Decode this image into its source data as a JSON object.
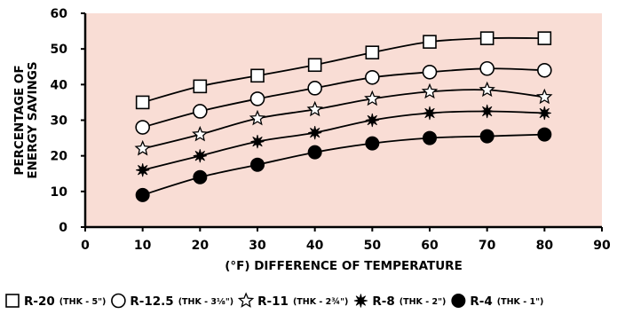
{
  "chart_data": {
    "type": "line",
    "xlabel": "(°F) DIFFERENCE OF TEMPERATURE",
    "ylabel": [
      "PERCENTAGE OF",
      "ENERGY SAVINGS"
    ],
    "xlim": [
      0,
      90
    ],
    "ylim": [
      0,
      60
    ],
    "xticks": [
      "0",
      "10",
      "20",
      "30",
      "40",
      "50",
      "60",
      "70",
      "80",
      "90"
    ],
    "yticks": [
      "0",
      "10",
      "20",
      "30",
      "40",
      "50",
      "60"
    ],
    "grid": false,
    "legend_position": "bottom",
    "colors": {
      "plot_background": "#f9ddd5",
      "line": "#000000"
    },
    "x": [
      10,
      20,
      30,
      40,
      50,
      60,
      70,
      80
    ],
    "series": [
      {
        "name": "R-20",
        "note": "(THK - 5\")",
        "marker": "square",
        "values": [
          35,
          39.5,
          42.5,
          45.5,
          49,
          52,
          53,
          53
        ]
      },
      {
        "name": "R-12.5",
        "note": "(THK - 3⅛\")",
        "marker": "circle-open",
        "values": [
          28,
          32.5,
          36,
          39,
          42,
          43.5,
          44.5,
          44
        ]
      },
      {
        "name": "R-11",
        "note": "(THK - 2¾\")",
        "marker": "star-open",
        "values": [
          22,
          26,
          30.5,
          33,
          36,
          38,
          38.5,
          36.5
        ]
      },
      {
        "name": "R-8",
        "note": "(THK - 2\")",
        "marker": "starburst",
        "values": [
          16,
          20,
          24,
          26.5,
          30,
          32,
          32.5,
          32
        ]
      },
      {
        "name": "R-4",
        "note": "(THK - 1\")",
        "marker": "circle-filled",
        "values": [
          9,
          14,
          17.5,
          21,
          23.5,
          25,
          25.5,
          26
        ]
      }
    ]
  }
}
